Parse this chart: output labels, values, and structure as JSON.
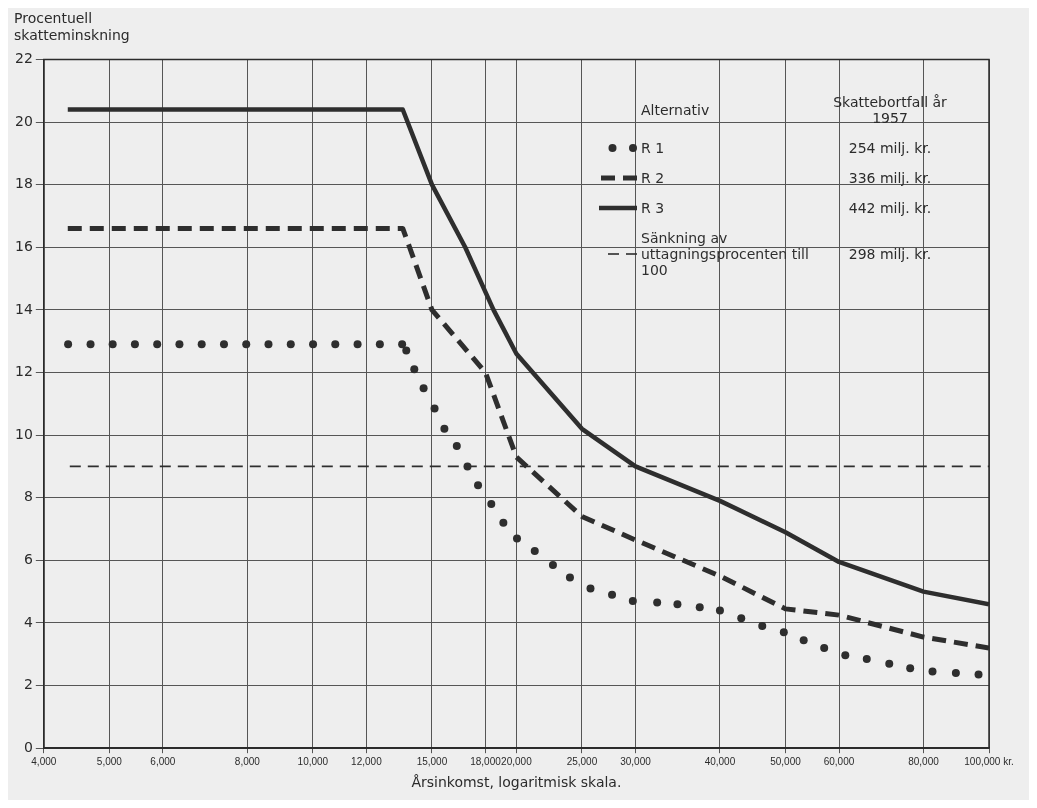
{
  "chart_data": {
    "type": "line",
    "ylabel": "Procentuell skatteminskning",
    "xlabel": "Årsinkomst, logaritmisk skala.",
    "legend_title": "Alternativ",
    "annotations": [
      "Skattebortfall år 1957",
      "254 milj. kr.",
      "336 milj. kr.",
      "442 milj. kr.",
      "298 milj. kr."
    ],
    "log": "x",
    "xlim": [
      4000,
      100000
    ],
    "xticks": [
      {
        "value": 4000,
        "label": "4,000"
      },
      {
        "value": 5000,
        "label": "5,000"
      },
      {
        "value": 6000,
        "label": "6,000"
      },
      {
        "value": 8000,
        "label": "8,000"
      },
      {
        "value": 10000,
        "label": "10,000"
      },
      {
        "value": 12000,
        "label": "12,000"
      },
      {
        "value": 15000,
        "label": "15,000"
      },
      {
        "value": 18000,
        "label": "18,000"
      },
      {
        "value": 20000,
        "label": "20,000"
      },
      {
        "value": 25000,
        "label": "25,000"
      },
      {
        "value": 30000,
        "label": "30,000"
      },
      {
        "value": 40000,
        "label": "40,000"
      },
      {
        "value": 50000,
        "label": "50,000"
      },
      {
        "value": 60000,
        "label": "60,000"
      },
      {
        "value": 80000,
        "label": "80,000"
      },
      {
        "value": 100000,
        "label": "100,000 kr."
      }
    ],
    "ylim": [
      0,
      22
    ],
    "yticks": [
      0,
      2,
      4,
      6,
      8,
      10,
      12,
      14,
      16,
      18,
      20,
      22
    ],
    "grid": true,
    "legend": "top right",
    "series": [
      {
        "name": "R 1",
        "type": "scatter",
        "color": "#2e2e2e",
        "marker": "circle",
        "x": [
          4345,
          4690,
          5057,
          5455,
          5885,
          6348,
          6848,
          7388,
          7970,
          8597,
          9275,
          10006,
          10793,
          11645,
          12562,
          13552,
          13745,
          14125,
          14580,
          15135,
          15650,
          16325,
          16930,
          17550,
          18360,
          19130,
          20040,
          21290,
          22650,
          24000,
          25740,
          27700,
          29730,
          32300,
          34610,
          37340,
          40000,
          43010,
          46200,
          49720,
          53200,
          57050,
          61300,
          65950,
          71200,
          76460,
          82500,
          89330,
          96500
        ],
        "values": [
          12.9,
          12.9,
          12.9,
          12.9,
          12.9,
          12.9,
          12.9,
          12.9,
          12.9,
          12.9,
          12.9,
          12.9,
          12.9,
          12.9,
          12.9,
          12.9,
          12.7,
          12.1,
          11.5,
          10.85,
          10.2,
          9.65,
          9.0,
          8.4,
          7.8,
          7.2,
          6.7,
          6.3,
          5.85,
          5.45,
          5.1,
          4.9,
          4.7,
          4.65,
          4.6,
          4.5,
          4.4,
          4.15,
          3.9,
          3.7,
          3.45,
          3.2,
          2.97,
          2.85,
          2.7,
          2.55,
          2.45,
          2.4,
          2.35
        ]
      },
      {
        "name": "R 2",
        "color": "#2e2e2e",
        "line_style": "dashed",
        "x": [
          4340,
          13580,
          13900,
          15000,
          18000,
          20000,
          25000,
          30000,
          40000,
          50000,
          60000,
          80000,
          100000
        ],
        "values": [
          16.6,
          16.6,
          16.0,
          14.0,
          12.0,
          9.3,
          7.4,
          6.65,
          5.5,
          4.45,
          4.25,
          3.55,
          3.2
        ]
      },
      {
        "name": "R 3",
        "color": "#2e2e2e",
        "line_style": "solid",
        "x": [
          4340,
          13580,
          15000,
          16800,
          18500,
          20000,
          25000,
          30000,
          40000,
          50000,
          60000,
          80000,
          100000
        ],
        "values": [
          20.4,
          20.4,
          18.0,
          16.0,
          14.0,
          12.6,
          10.2,
          9.0,
          7.9,
          6.9,
          5.95,
          5.0,
          4.6
        ]
      },
      {
        "name": "Sänkning av uttagningsprocenten till 100",
        "color": "#2e2e2e",
        "line_style": "dashed",
        "x": [
          4370,
          100000
        ],
        "values": [
          9.0,
          9.0
        ]
      }
    ]
  }
}
